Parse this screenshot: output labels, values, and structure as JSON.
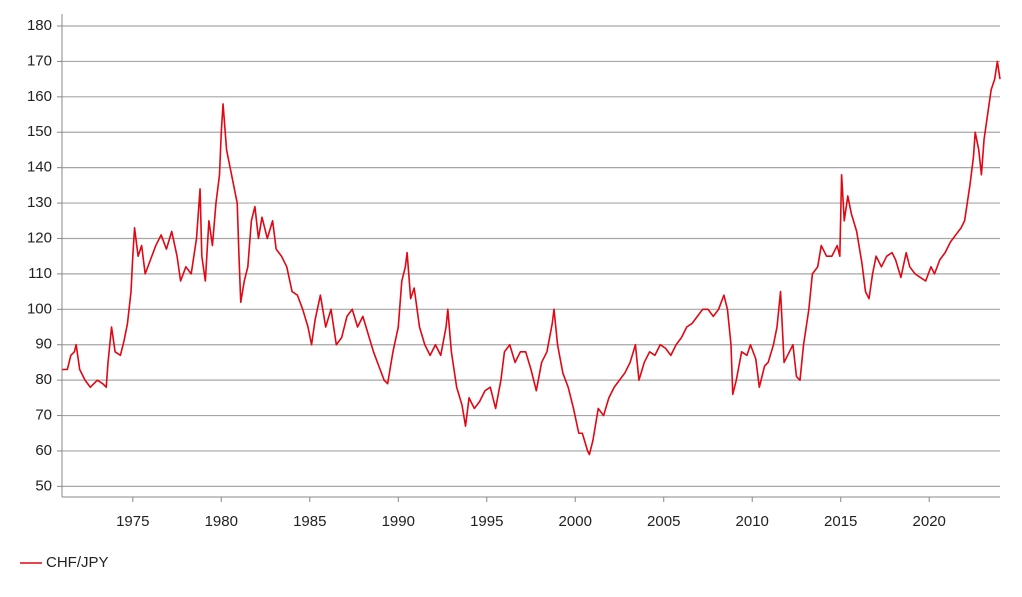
{
  "chart_data": {
    "type": "line",
    "series": [
      {
        "name": "CHF/JPY",
        "color": "#e30613",
        "x": [
          1971.0,
          1971.3,
          1971.5,
          1971.7,
          1971.8,
          1972.0,
          1972.3,
          1972.6,
          1973.0,
          1973.3,
          1973.5,
          1973.6,
          1973.8,
          1974.0,
          1974.3,
          1974.5,
          1974.7,
          1974.9,
          1975.0,
          1975.1,
          1975.3,
          1975.5,
          1975.7,
          1976.0,
          1976.3,
          1976.6,
          1976.9,
          1977.2,
          1977.5,
          1977.7,
          1978.0,
          1978.3,
          1978.6,
          1978.8,
          1978.9,
          1979.1,
          1979.3,
          1979.5,
          1979.7,
          1979.9,
          1980.0,
          1980.1,
          1980.3,
          1980.5,
          1980.7,
          1980.9,
          1981.0,
          1981.1,
          1981.3,
          1981.5,
          1981.7,
          1981.9,
          1982.1,
          1982.3,
          1982.6,
          1982.9,
          1983.1,
          1983.4,
          1983.7,
          1984.0,
          1984.3,
          1984.6,
          1984.9,
          1985.1,
          1985.3,
          1985.6,
          1985.9,
          1986.2,
          1986.5,
          1986.8,
          1987.1,
          1987.4,
          1987.7,
          1988.0,
          1988.3,
          1988.6,
          1988.9,
          1989.2,
          1989.4,
          1989.7,
          1990.0,
          1990.2,
          1990.4,
          1990.5,
          1990.7,
          1990.9,
          1991.2,
          1991.5,
          1991.8,
          1992.1,
          1992.4,
          1992.7,
          1992.8,
          1993.0,
          1993.3,
          1993.6,
          1993.8,
          1994.0,
          1994.3,
          1994.6,
          1994.9,
          1995.2,
          1995.5,
          1995.8,
          1996.0,
          1996.3,
          1996.6,
          1996.9,
          1997.2,
          1997.5,
          1997.8,
          1998.1,
          1998.4,
          1998.7,
          1998.8,
          1999.0,
          1999.3,
          1999.6,
          1999.9,
          2000.2,
          2000.4,
          2000.7,
          2000.8,
          2001.0,
          2001.3,
          2001.6,
          2001.9,
          2002.2,
          2002.5,
          2002.8,
          2003.1,
          2003.4,
          2003.6,
          2003.9,
          2004.2,
          2004.5,
          2004.8,
          2005.1,
          2005.4,
          2005.7,
          2006.0,
          2006.3,
          2006.6,
          2006.9,
          2007.2,
          2007.5,
          2007.8,
          2008.1,
          2008.4,
          2008.6,
          2008.8,
          2008.9,
          2009.1,
          2009.4,
          2009.7,
          2009.9,
          2010.2,
          2010.4,
          2010.7,
          2010.9,
          2011.2,
          2011.4,
          2011.6,
          2011.8,
          2012.1,
          2012.3,
          2012.5,
          2012.7,
          2012.9,
          2013.2,
          2013.4,
          2013.7,
          2013.9,
          2014.2,
          2014.5,
          2014.8,
          2014.95,
          2015.05,
          2015.2,
          2015.4,
          2015.6,
          2015.9,
          2016.2,
          2016.4,
          2016.6,
          2016.8,
          2017.0,
          2017.3,
          2017.6,
          2017.9,
          2018.1,
          2018.4,
          2018.7,
          2018.9,
          2019.2,
          2019.5,
          2019.8,
          2020.1,
          2020.3,
          2020.6,
          2020.9,
          2021.2,
          2021.5,
          2021.8,
          2022.0,
          2022.3,
          2022.5,
          2022.6,
          2022.8,
          2022.95,
          2023.1,
          2023.3,
          2023.5,
          2023.7,
          2023.85,
          2024.0
        ],
        "values": [
          83,
          83,
          87,
          88,
          90,
          83,
          80,
          78,
          80,
          79,
          78,
          85,
          95,
          88,
          87,
          91,
          96,
          105,
          115,
          123,
          115,
          118,
          110,
          114,
          118,
          121,
          117,
          122,
          115,
          108,
          112,
          110,
          120,
          134,
          115,
          108,
          125,
          118,
          130,
          138,
          150,
          158,
          145,
          140,
          135,
          130,
          115,
          102,
          108,
          112,
          125,
          129,
          120,
          126,
          120,
          125,
          117,
          115,
          112,
          105,
          104,
          100,
          95,
          90,
          97,
          104,
          95,
          100,
          90,
          92,
          98,
          100,
          95,
          98,
          93,
          88,
          84,
          80,
          79,
          88,
          95,
          108,
          112,
          116,
          103,
          106,
          95,
          90,
          87,
          90,
          87,
          95,
          100,
          88,
          78,
          73,
          67,
          75,
          72,
          74,
          77,
          78,
          72,
          80,
          88,
          90,
          85,
          88,
          88,
          83,
          77,
          85,
          88,
          96,
          100,
          90,
          82,
          78,
          72,
          65,
          65,
          60,
          59,
          63,
          72,
          70,
          75,
          78,
          80,
          82,
          85,
          90,
          80,
          85,
          88,
          87,
          90,
          89,
          87,
          90,
          92,
          95,
          96,
          98,
          100,
          100,
          98,
          100,
          104,
          100,
          90,
          76,
          80,
          88,
          87,
          90,
          86,
          78,
          84,
          85,
          90,
          95,
          105,
          85,
          88,
          90,
          81,
          80,
          90,
          100,
          110,
          112,
          118,
          115,
          115,
          118,
          115,
          138,
          125,
          132,
          127,
          122,
          113,
          105,
          103,
          110,
          115,
          112,
          115,
          116,
          114,
          109,
          116,
          112,
          110,
          109,
          108,
          112,
          110,
          114,
          116,
          119,
          121,
          123,
          125,
          135,
          143,
          150,
          145,
          138,
          148,
          155,
          162,
          165,
          170,
          165
        ]
      }
    ],
    "xlim": [
      1971,
      2024
    ],
    "xticks": [
      1975,
      1980,
      1985,
      1990,
      1995,
      2000,
      2005,
      2010,
      2015,
      2020
    ],
    "ylim": [
      47,
      180
    ],
    "yticks": [
      50,
      60,
      70,
      80,
      90,
      100,
      110,
      120,
      130,
      140,
      150,
      160,
      170,
      180
    ],
    "grid": true
  }
}
